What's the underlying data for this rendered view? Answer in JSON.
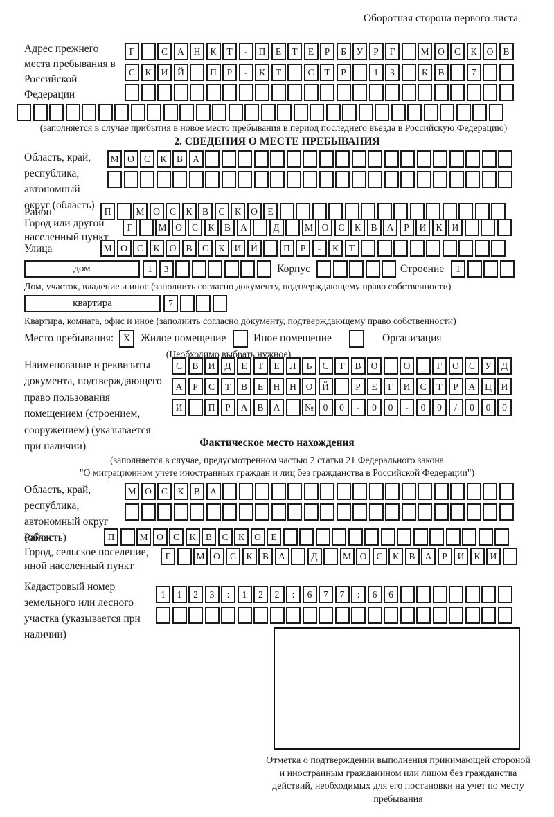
{
  "page": {
    "header_note": "Оборотная сторона первого листа"
  },
  "prev_address": {
    "label": "Адрес прежнего места пребывания в Российской Федерации",
    "rows": [
      "Г САНКТ-ПЕТЕРБУРГ МОСКОВ",
      "СКИЙ ПР-КТ СТР 13 КВ 7  ",
      "                        ",
      "                              "
    ],
    "caption": "(заполняется в случае прибытия в новое место пребывания в период последнего въезда в Российскую Федерацию)"
  },
  "section2": {
    "title": "2. СВЕДЕНИЯ О МЕСТЕ ПРЕБЫВАНИЯ",
    "region": {
      "label": "Область, край, республика, автономный округ (область)",
      "rows": [
        "МОСКВА                   ",
        "                         "
      ]
    },
    "district": {
      "label": "Район",
      "row": "П МОСКВСКОЕ              "
    },
    "city": {
      "label": "Город или другой населенный пункт",
      "row": "Г МОСКВА Д МОСКВАРИКИ   "
    },
    "street": {
      "label": "Улица",
      "row": "МОСКОВСКИЙ ПР-КТ         "
    },
    "house": {
      "box_label": "дом",
      "cells": "13      ",
      "korpus_label": "Корпус",
      "korpus_cells": "     ",
      "stroenie_label": "Строение",
      "stroenie_cells": "1   ",
      "caption": "Дом, участок, владение и иное (заполнить согласно документу, подтверждающему право собственности)"
    },
    "apartment": {
      "box_label": "квартира",
      "cells": "7   ",
      "caption": "Квартира, комната, офис и иное (заполнить согласно документу, подтверждающему право собственности)"
    },
    "stay_type": {
      "label": "Место пребывания:",
      "options": [
        {
          "label": "Жилое помещение",
          "mark": "X"
        },
        {
          "label": "Иное помещение",
          "mark": ""
        },
        {
          "label": "Организация",
          "mark": ""
        }
      ],
      "note": "(Необходимо выбрать нужное)"
    },
    "document": {
      "label": "Наименование и реквизиты документа, подтверждающего право пользования помещением (строением, сооружением) (указывается при наличии)",
      "rows": [
        "СВИДЕТЕЛЬСТВО О ГОСУД",
        "АРСТВЕННОЙ РЕГИСТРАЦИ",
        "И ПРАВА №00-00-00/000"
      ]
    }
  },
  "actual_location": {
    "title": "Фактическое место нахождения",
    "law_note_line1": "(заполняется в случае, предусмотренном частью 2 статьи 21 Федерального закона",
    "law_note_line2": "\"О миграционном учете иностранных граждан и лиц без гражданства в Российской Федерации\")",
    "region": {
      "label": "Область, край, республика, автономный округ (область)",
      "rows": [
        "МОСКВА                  ",
        "                        "
      ]
    },
    "district": {
      "label": "Район",
      "row": "П МОСКВСКОЕ              "
    },
    "city": {
      "label": "Город, сельское поселение, иной населенный пункт",
      "row": "Г МОСКВА Д МОСКВАРИКИ "
    },
    "cadastre": {
      "label": "Кадастровый номер земельного или лесного участка (указывается при наличии)",
      "rows": [
        "1123:122:677:66       ",
        "                      "
      ]
    }
  },
  "confirmation": {
    "caption": "Отметка о подтверждении выполнения принимающей стороной и иностранным гражданином или лицом без гражданства действий, необходимых для его постановки на учет по месту пребывания"
  }
}
